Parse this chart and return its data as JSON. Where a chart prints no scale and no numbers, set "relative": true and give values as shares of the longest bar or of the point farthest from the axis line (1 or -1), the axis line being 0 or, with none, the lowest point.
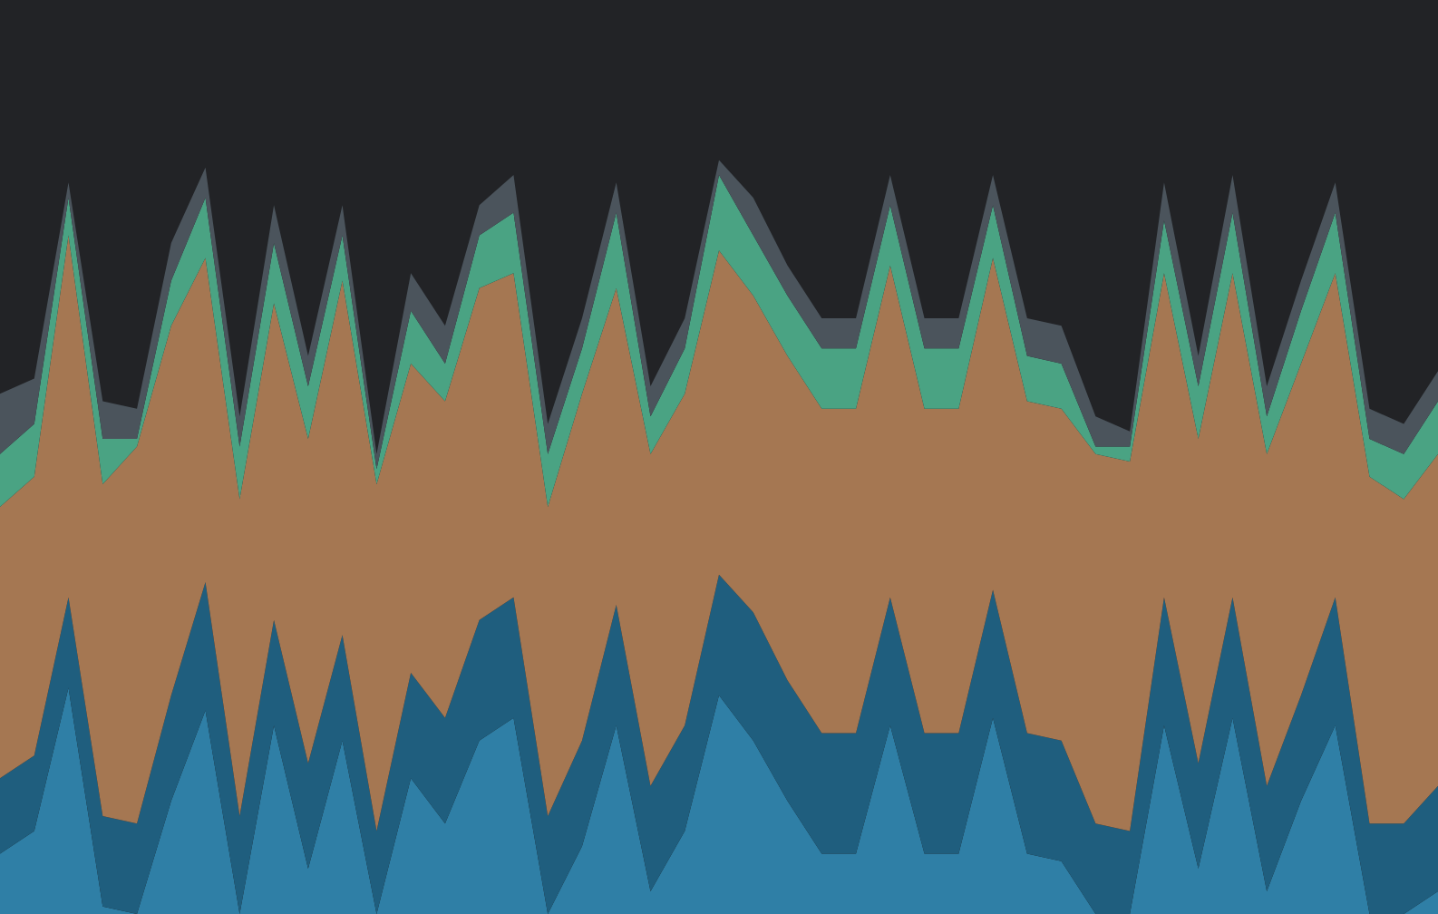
{
  "chart_data": {
    "type": "area",
    "stacked": true,
    "relative": true,
    "categories": [
      null,
      null,
      null,
      null,
      null,
      null,
      null,
      null,
      null,
      null,
      null,
      null,
      null,
      null,
      null,
      null,
      null,
      null,
      null,
      null,
      null,
      null,
      null,
      null,
      null,
      null,
      null,
      null,
      null,
      null,
      null,
      null,
      null,
      null,
      null,
      null,
      null,
      null,
      null,
      null,
      null,
      null,
      null
    ],
    "series": [
      {
        "color": "#2f7fa6",
        "values": [
          0.08,
          0.11,
          0.3,
          0.01,
          0,
          0.15,
          0.27,
          0,
          0.25,
          0.06,
          0.23,
          0,
          0.18,
          0.12,
          0.23,
          0.26,
          0,
          0.09,
          0.25,
          0.03,
          0.11,
          0.29,
          0.23,
          0.15,
          0.08,
          0.08,
          0.25,
          0.08,
          0.08,
          0.26,
          0.08,
          0.07,
          0,
          0,
          0.25,
          0.06,
          0.26,
          0.03,
          0.15,
          0.25,
          0,
          0,
          0.03
        ]
      },
      {
        "color": "#1f5e7e",
        "values": [
          0.1,
          0.1,
          0.12,
          0.12,
          0.12,
          0.14,
          0.17,
          0.13,
          0.14,
          0.14,
          0.14,
          0.11,
          0.14,
          0.14,
          0.16,
          0.16,
          0.13,
          0.14,
          0.16,
          0.14,
          0.14,
          0.16,
          0.17,
          0.16,
          0.16,
          0.16,
          0.17,
          0.16,
          0.16,
          0.17,
          0.16,
          0.16,
          0.12,
          0.11,
          0.17,
          0.14,
          0.16,
          0.14,
          0.14,
          0.17,
          0.12,
          0.12,
          0.14
        ]
      },
      {
        "color": "#a57752",
        "values": [
          0.36,
          0.37,
          0.48,
          0.44,
          0.5,
          0.49,
          0.43,
          0.42,
          0.42,
          0.43,
          0.47,
          0.46,
          0.41,
          0.42,
          0.44,
          0.43,
          0.41,
          0.46,
          0.42,
          0.44,
          0.44,
          0.43,
          0.42,
          0.43,
          0.43,
          0.43,
          0.44,
          0.43,
          0.43,
          0.44,
          0.44,
          0.44,
          0.49,
          0.49,
          0.43,
          0.43,
          0.43,
          0.44,
          0.44,
          0.43,
          0.46,
          0.43,
          0.44
        ]
      },
      {
        "color": "#4aa383",
        "values": [
          0.07,
          0.07,
          0.05,
          0.06,
          0.01,
          0.06,
          0.08,
          0.07,
          0.08,
          0.07,
          0.06,
          0.02,
          0.07,
          0.05,
          0.07,
          0.08,
          0.07,
          0.06,
          0.1,
          0.05,
          0.06,
          0.1,
          0.08,
          0.08,
          0.08,
          0.08,
          0.08,
          0.08,
          0.08,
          0.07,
          0.06,
          0.06,
          0.01,
          0.02,
          0.07,
          0.07,
          0.08,
          0.05,
          0.07,
          0.08,
          0.05,
          0.06,
          0.07
        ]
      },
      {
        "color": "#4b545c",
        "values": [
          0.08,
          0.06,
          0.02,
          0.05,
          0.04,
          0.05,
          0.04,
          0.04,
          0.05,
          0.04,
          0.04,
          0.02,
          0.05,
          0.05,
          0.04,
          0.05,
          0.04,
          0.04,
          0.04,
          0.04,
          0.04,
          0.02,
          0.05,
          0.04,
          0.04,
          0.04,
          0.04,
          0.04,
          0.04,
          0.04,
          0.05,
          0.05,
          0.04,
          0.02,
          0.05,
          0.04,
          0.05,
          0.04,
          0.04,
          0.04,
          0.04,
          0.04,
          0.04
        ]
      }
    ]
  }
}
